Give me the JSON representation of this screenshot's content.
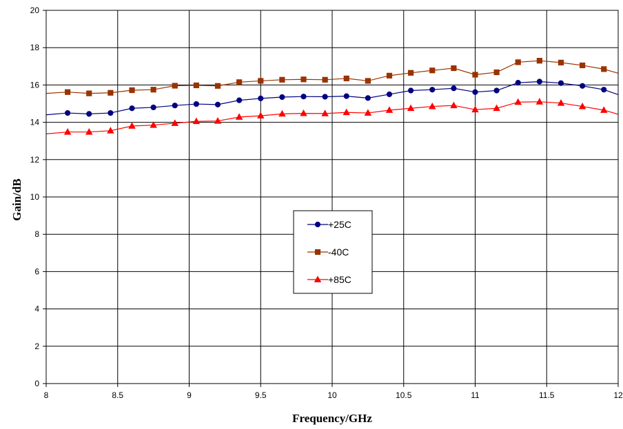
{
  "chart_data": {
    "type": "line",
    "title": "",
    "xlabel": "Frequency/GHz",
    "ylabel": "Gain/dB",
    "xlim": [
      8,
      12
    ],
    "ylim": [
      0,
      20
    ],
    "xticks": [
      "8",
      "8.5",
      "9",
      "9.5",
      "10",
      "10.5",
      "11",
      "11.5",
      "12"
    ],
    "yticks": [
      "0",
      "2",
      "4",
      "6",
      "8",
      "10",
      "12",
      "14",
      "16",
      "18",
      "20"
    ],
    "grid": true,
    "legend_position": "center",
    "x": [
      8.0,
      8.15,
      8.3,
      8.45,
      8.6,
      8.75,
      8.9,
      9.05,
      9.2,
      9.35,
      9.5,
      9.65,
      9.8,
      9.95,
      10.1,
      10.25,
      10.4,
      10.55,
      10.7,
      10.85,
      11.0,
      11.15,
      11.3,
      11.45,
      11.6,
      11.75,
      11.9,
      12.05
    ],
    "series": [
      {
        "name": "+25C",
        "color": "#000080",
        "marker": "circle",
        "values": [
          14.4,
          14.5,
          14.45,
          14.5,
          14.75,
          14.8,
          14.9,
          14.98,
          14.95,
          15.18,
          15.28,
          15.35,
          15.38,
          15.37,
          15.4,
          15.3,
          15.5,
          15.7,
          15.75,
          15.82,
          15.62,
          15.7,
          16.12,
          16.18,
          16.1,
          15.95,
          15.75,
          15.35
        ]
      },
      {
        "name": "-40C",
        "color": "#993300",
        "marker": "square",
        "values": [
          15.55,
          15.62,
          15.55,
          15.58,
          15.72,
          15.75,
          15.96,
          15.98,
          15.95,
          16.15,
          16.22,
          16.28,
          16.3,
          16.28,
          16.35,
          16.22,
          16.5,
          16.65,
          16.78,
          16.9,
          16.55,
          16.68,
          17.22,
          17.3,
          17.2,
          17.05,
          16.85,
          16.52
        ]
      },
      {
        "name": "+85C",
        "color": "#ff0000",
        "marker": "triangle",
        "values": [
          13.38,
          13.48,
          13.48,
          13.55,
          13.8,
          13.85,
          13.95,
          14.05,
          14.07,
          14.28,
          14.35,
          14.45,
          14.48,
          14.47,
          14.53,
          14.5,
          14.65,
          14.75,
          14.85,
          14.9,
          14.68,
          14.75,
          15.08,
          15.1,
          15.03,
          14.85,
          14.65,
          14.32
        ]
      }
    ]
  }
}
